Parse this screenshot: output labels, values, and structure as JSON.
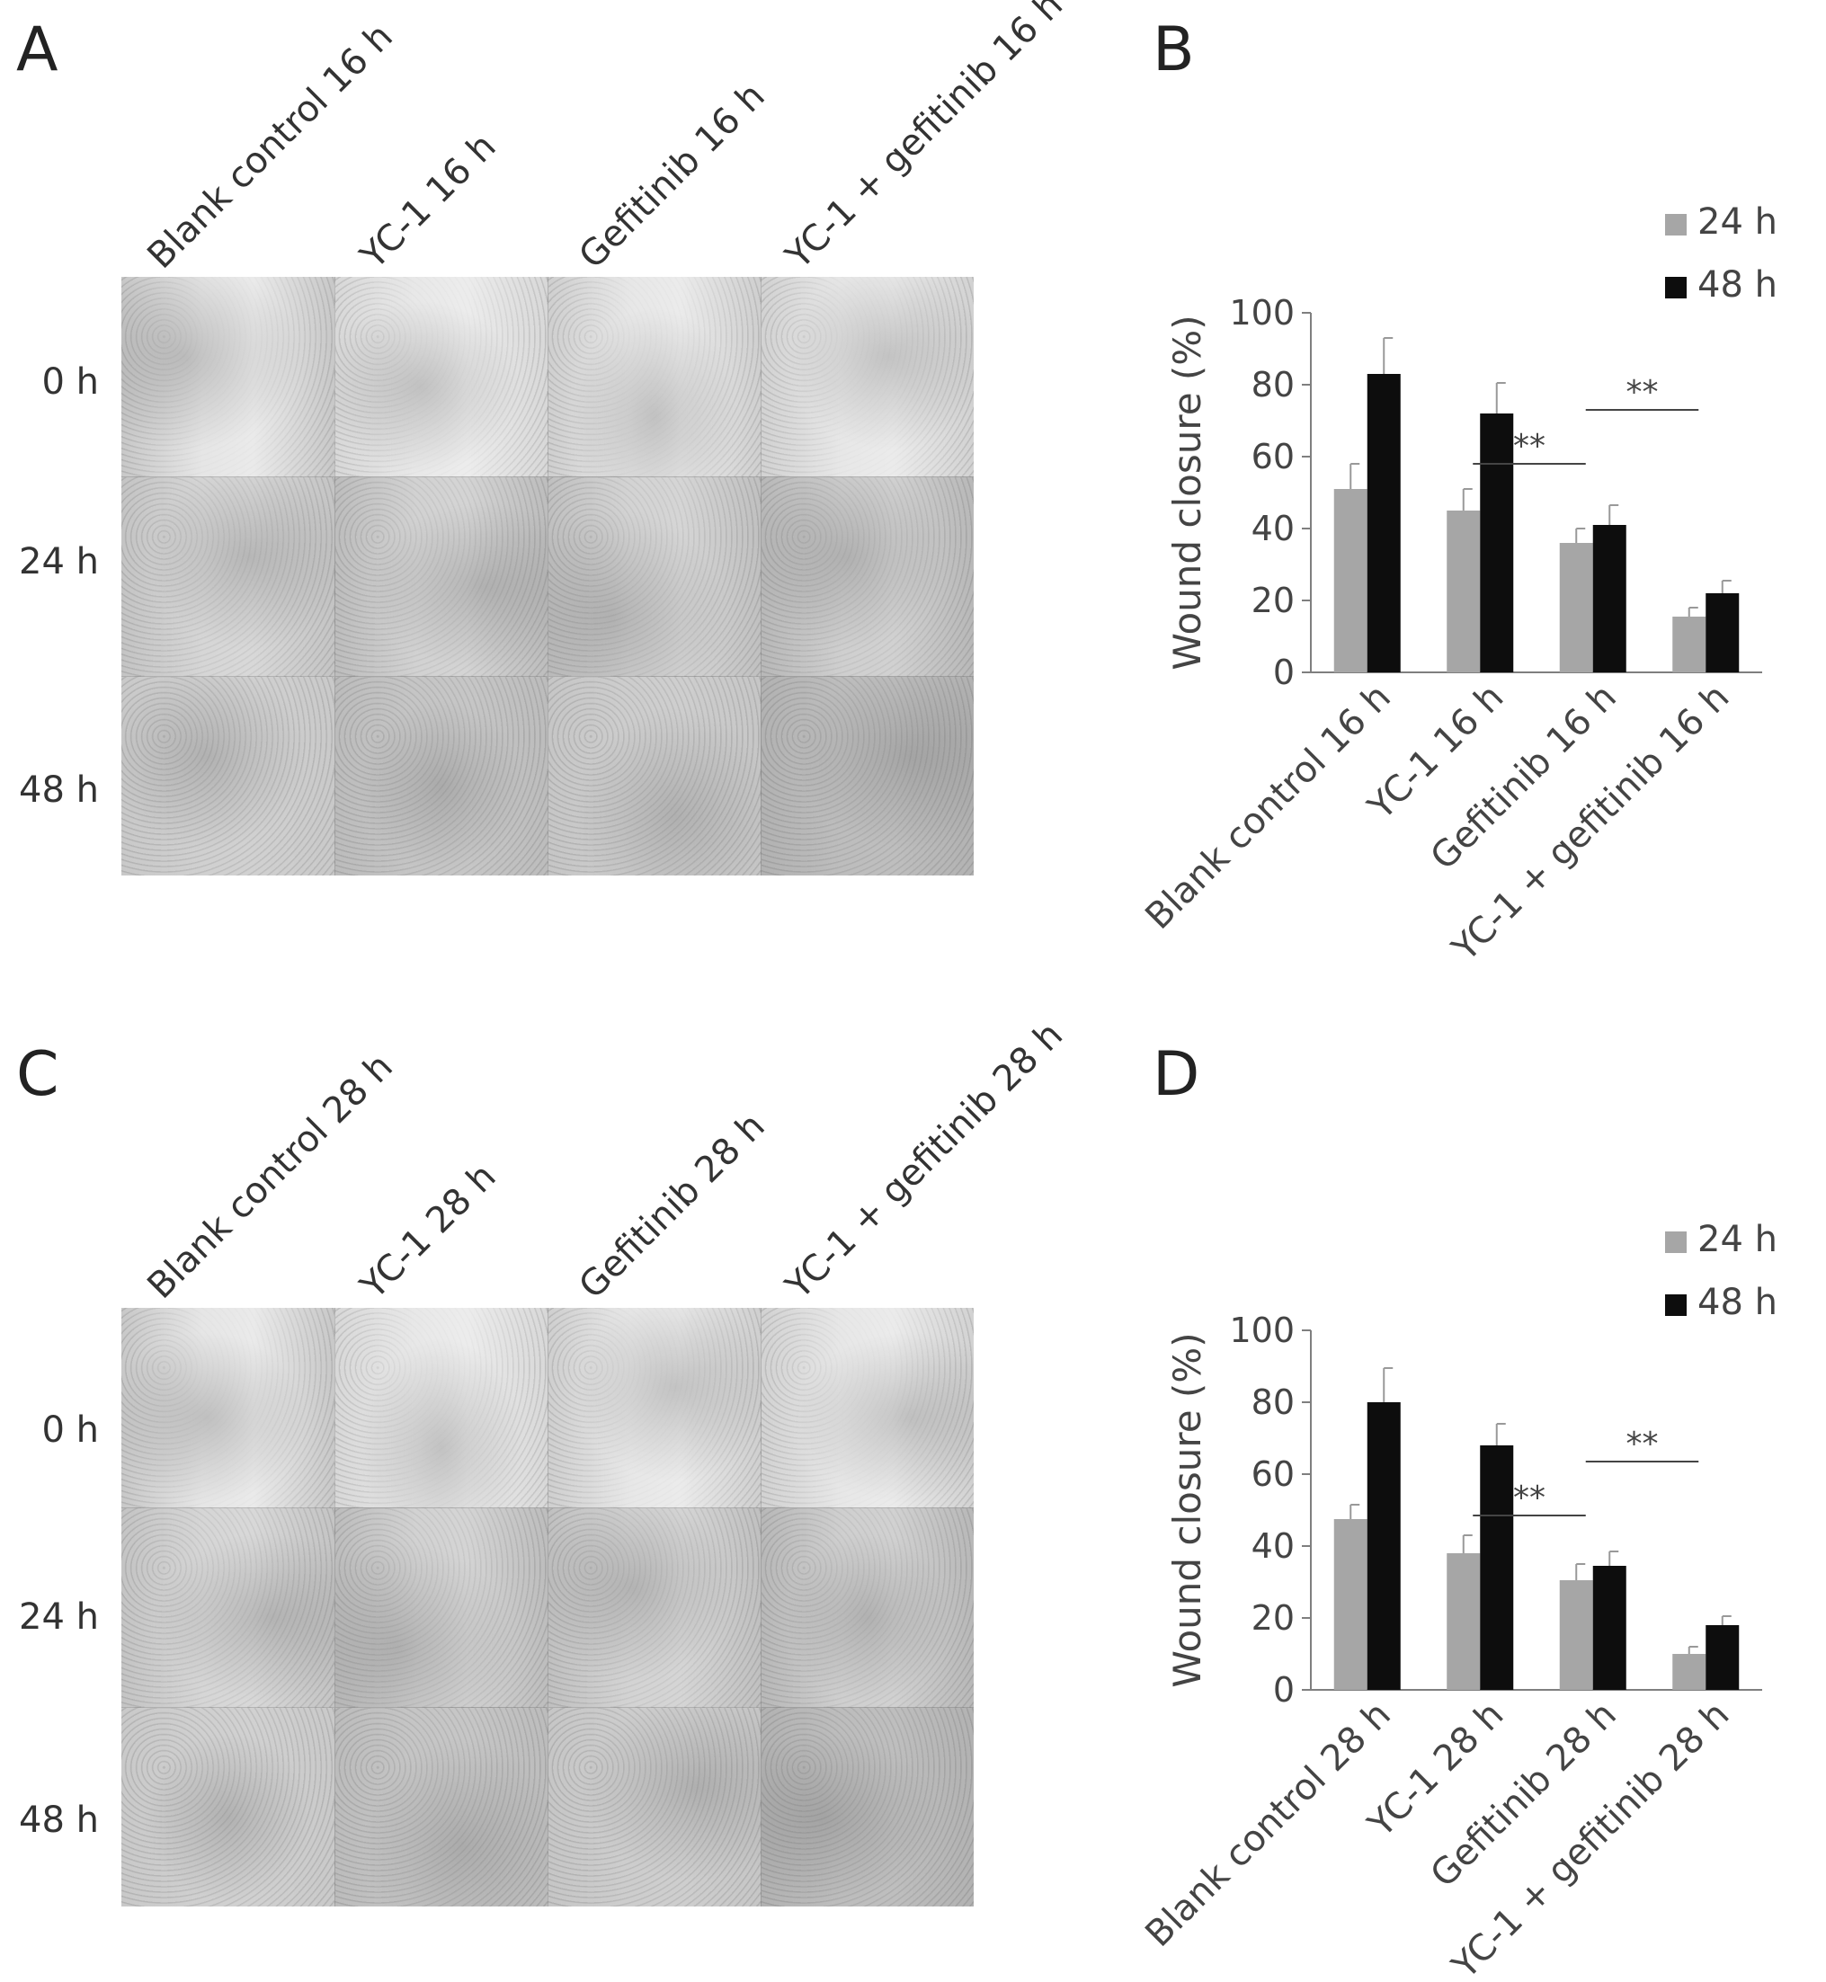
{
  "panels": {
    "A": "A",
    "B": "B",
    "C": "C",
    "D": "D"
  },
  "micrographs": [
    {
      "column_labels": [
        "Blank control 16 h",
        "YC-1 16 h",
        "Gefitinib 16 h",
        "YC-1 + gefitinib 16 h"
      ],
      "row_labels": [
        "0 h",
        "24 h",
        "48 h"
      ]
    },
    {
      "column_labels": [
        "Blank control 28 h",
        "YC-1 28 h",
        "Gefitinib 28 h",
        "YC-1 + gefitinib 28 h"
      ],
      "row_labels": [
        "0 h",
        "24 h",
        "48 h"
      ]
    }
  ],
  "colors": {
    "series_24h": "#a6a6a6",
    "series_48h": "#0d0d0d"
  },
  "chart_data": [
    {
      "type": "bar",
      "categories": [
        "Blank control 16 h",
        "YC-1 16 h",
        "Gefitinib 16 h",
        "YC-1 + gefitinib 16 h"
      ],
      "series": [
        {
          "name": "24 h",
          "values": [
            51,
            45,
            36,
            15.5
          ],
          "errors": [
            7,
            6,
            4,
            2.5
          ]
        },
        {
          "name": "48 h",
          "values": [
            83,
            72,
            41,
            22
          ],
          "errors": [
            10,
            8.5,
            5.5,
            3.5
          ]
        }
      ],
      "ylabel": "Wound closure (%)",
      "ylim": [
        0,
        100
      ],
      "yticks": [
        0,
        20,
        40,
        60,
        80,
        100
      ],
      "legend": "top-right",
      "significance": [
        {
          "from": 1,
          "to": 2,
          "level": 58,
          "label": "**"
        },
        {
          "from": 2,
          "to": 3,
          "level": 73,
          "label": "**"
        }
      ]
    },
    {
      "type": "bar",
      "categories": [
        "Blank control 28 h",
        "YC-1 28 h",
        "Gefitinib 28 h",
        "YC-1 + gefitinib 28 h"
      ],
      "series": [
        {
          "name": "24 h",
          "values": [
            47.5,
            38,
            30.5,
            10
          ],
          "errors": [
            4,
            5,
            4.5,
            2
          ]
        },
        {
          "name": "48 h",
          "values": [
            80,
            68,
            34.5,
            18
          ],
          "errors": [
            9.5,
            6,
            4,
            2.5
          ]
        }
      ],
      "ylabel": "Wound closure (%)",
      "ylim": [
        0,
        100
      ],
      "yticks": [
        0,
        20,
        40,
        60,
        80,
        100
      ],
      "legend": "top-right",
      "significance": [
        {
          "from": 1,
          "to": 2,
          "level": 48.5,
          "label": "**"
        },
        {
          "from": 2,
          "to": 3,
          "level": 63.5,
          "label": "**"
        }
      ]
    }
  ]
}
